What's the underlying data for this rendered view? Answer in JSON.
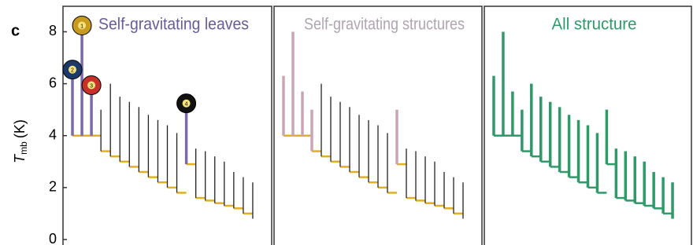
{
  "panel_label": "c",
  "ylabel": "T",
  "ylabel_sub": "mb",
  "ylabel_unit": "(K)",
  "chart_data": [
    {
      "type": "dendrogram",
      "title": "Self-gravitating leaves",
      "title_color": "#6a5a9a",
      "ylim": [
        0,
        8.8
      ],
      "yticks": [
        0,
        2,
        4,
        6,
        8
      ],
      "leaf_top": [
        6.3,
        8.0,
        5.7,
        5.0,
        6.0,
        5.5,
        5.3,
        5.1,
        4.8,
        4.6,
        4.4,
        4.1,
        5.0,
        3.5,
        3.4,
        3.2,
        3.0,
        2.6,
        2.4,
        2.2
      ],
      "leaf_base": [
        4.0,
        4.0,
        4.0,
        3.4,
        3.2,
        3.0,
        2.8,
        2.6,
        2.4,
        2.2,
        2.0,
        1.8,
        2.9,
        1.6,
        1.5,
        1.4,
        1.3,
        1.2,
        1.0,
        0.8
      ],
      "leaf_color": [
        "#7b6aa8",
        "#7b6aa8",
        "#7b6aa8",
        "#222",
        "#222",
        "#222",
        "#222",
        "#222",
        "#222",
        "#222",
        "#222",
        "#222",
        "#7b6aa8",
        "#222",
        "#222",
        "#222",
        "#222",
        "#222",
        "#222",
        "#222"
      ],
      "trunk_color": "#e0b020",
      "leaf_marker": [
        "2",
        "1",
        "3",
        null,
        null,
        null,
        null,
        null,
        null,
        null,
        null,
        null,
        "4",
        null,
        null,
        null,
        null,
        null,
        null,
        null
      ],
      "marker_color": [
        "#1b3a6b",
        "#c89a20",
        "#c8302a",
        null,
        null,
        null,
        null,
        null,
        null,
        null,
        null,
        null,
        "#111",
        null,
        null,
        null,
        null,
        null,
        null,
        null
      ]
    },
    {
      "type": "dendrogram",
      "title": "Self-gravitating structures",
      "title_color": "#b0a4b0",
      "ylim": [
        0,
        8.8
      ],
      "leaf_top": [
        6.3,
        8.0,
        5.7,
        5.0,
        6.0,
        5.5,
        5.3,
        5.1,
        4.8,
        4.6,
        4.4,
        4.1,
        5.0,
        3.5,
        3.4,
        3.2,
        3.0,
        2.6,
        2.4,
        2.2
      ],
      "leaf_base": [
        4.0,
        4.0,
        4.0,
        3.4,
        3.2,
        3.0,
        2.8,
        2.6,
        2.4,
        2.2,
        2.0,
        1.8,
        2.9,
        1.6,
        1.5,
        1.4,
        1.3,
        1.2,
        1.0,
        0.8
      ],
      "leaf_color": [
        "#c9a6b6",
        "#c9a6b6",
        "#c9a6b6",
        "#c9a6b6",
        "#222",
        "#222",
        "#222",
        "#222",
        "#222",
        "#222",
        "#222",
        "#222",
        "#c9a6b6",
        "#222",
        "#222",
        "#222",
        "#222",
        "#222",
        "#222",
        "#222"
      ],
      "trunk_color": "#e0b020"
    },
    {
      "type": "dendrogram",
      "title": "All structure",
      "title_color": "#2e9a6a",
      "ylim": [
        0,
        8.8
      ],
      "leaf_top": [
        6.3,
        8.0,
        5.7,
        5.0,
        6.0,
        5.5,
        5.3,
        5.1,
        4.8,
        4.6,
        4.4,
        4.1,
        5.0,
        3.5,
        3.4,
        3.2,
        3.0,
        2.6,
        2.4,
        2.2
      ],
      "leaf_base": [
        4.0,
        4.0,
        4.0,
        3.4,
        3.2,
        3.0,
        2.8,
        2.6,
        2.4,
        2.2,
        2.0,
        1.8,
        2.9,
        1.6,
        1.5,
        1.4,
        1.3,
        1.2,
        1.0,
        0.8
      ],
      "leaf_color": [
        "#2e9a6a",
        "#2e9a6a",
        "#2e9a6a",
        "#2e9a6a",
        "#2e9a6a",
        "#2e9a6a",
        "#2e9a6a",
        "#2e9a6a",
        "#2e9a6a",
        "#2e9a6a",
        "#2e9a6a",
        "#2e9a6a",
        "#2e9a6a",
        "#2e9a6a",
        "#2e9a6a",
        "#2e9a6a",
        "#2e9a6a",
        "#2e9a6a",
        "#2e9a6a",
        "#2e9a6a"
      ],
      "trunk_color": "#2e9a6a"
    }
  ]
}
